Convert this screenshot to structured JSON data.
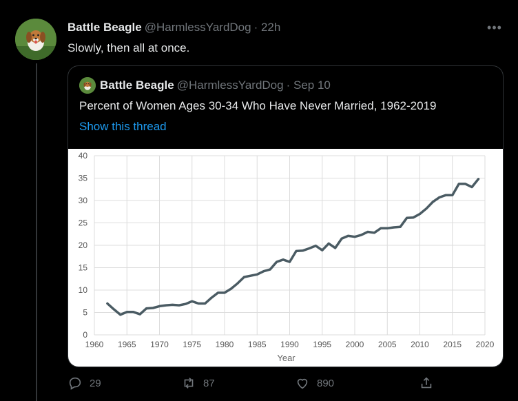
{
  "tweet": {
    "author_name": "Battle Beagle",
    "author_handle": "@HarmlessYardDog",
    "time": "· 22h",
    "text": "Slowly, then all at once.",
    "more_icon": "more-dots-icon"
  },
  "quote": {
    "author_name": "Battle Beagle",
    "author_handle": "@HarmlessYardDog",
    "time": "· Sep 10",
    "text": "Percent of Women Ages 30-34 Who Have Never Married, 1962-2019",
    "thread_link": "Show this thread"
  },
  "actions": {
    "replies": "29",
    "retweets": "87",
    "likes": "890",
    "reply_icon": "reply-icon",
    "retweet_icon": "retweet-icon",
    "like_icon": "heart-icon",
    "share_icon": "share-icon"
  },
  "colors": {
    "background": "#000000",
    "link": "#1d9bf0",
    "muted": "#71767b",
    "line": "#4a5b63"
  },
  "chart_data": {
    "type": "line",
    "title": "",
    "xlabel": "Year",
    "ylabel": "",
    "xlim": [
      1960,
      2020
    ],
    "ylim": [
      0,
      40
    ],
    "xticks": [
      1960,
      1965,
      1970,
      1975,
      1980,
      1985,
      1990,
      1995,
      2000,
      2005,
      2010,
      2015,
      2020
    ],
    "yticks": [
      0,
      5,
      10,
      15,
      20,
      25,
      30,
      35,
      40
    ],
    "grid": true,
    "x": [
      1962,
      1963,
      1964,
      1965,
      1966,
      1967,
      1968,
      1969,
      1970,
      1971,
      1972,
      1973,
      1974,
      1975,
      1976,
      1977,
      1978,
      1979,
      1980,
      1981,
      1982,
      1983,
      1984,
      1985,
      1986,
      1987,
      1988,
      1989,
      1990,
      1991,
      1992,
      1993,
      1994,
      1995,
      1996,
      1997,
      1998,
      1999,
      2000,
      2001,
      2002,
      2003,
      2004,
      2005,
      2006,
      2007,
      2008,
      2009,
      2010,
      2011,
      2012,
      2013,
      2014,
      2015,
      2016,
      2017,
      2018,
      2019
    ],
    "series": [
      {
        "values": [
          7.0,
          5.7,
          4.5,
          5.1,
          5.1,
          4.6,
          5.9,
          6.0,
          6.4,
          6.6,
          6.7,
          6.6,
          6.9,
          7.5,
          7.0,
          7.0,
          8.3,
          9.4,
          9.4,
          10.3,
          11.5,
          12.9,
          13.2,
          13.5,
          14.2,
          14.6,
          16.3,
          16.8,
          16.3,
          18.7,
          18.8,
          19.3,
          19.9,
          18.9,
          20.4,
          19.4,
          21.5,
          22.1,
          21.9,
          22.3,
          23.0,
          22.8,
          23.8,
          23.8,
          24.0,
          24.1,
          26.1,
          26.2,
          27.0,
          28.2,
          29.7,
          30.7,
          31.2,
          31.2,
          33.7,
          33.7,
          33.0,
          34.8
        ]
      }
    ]
  }
}
